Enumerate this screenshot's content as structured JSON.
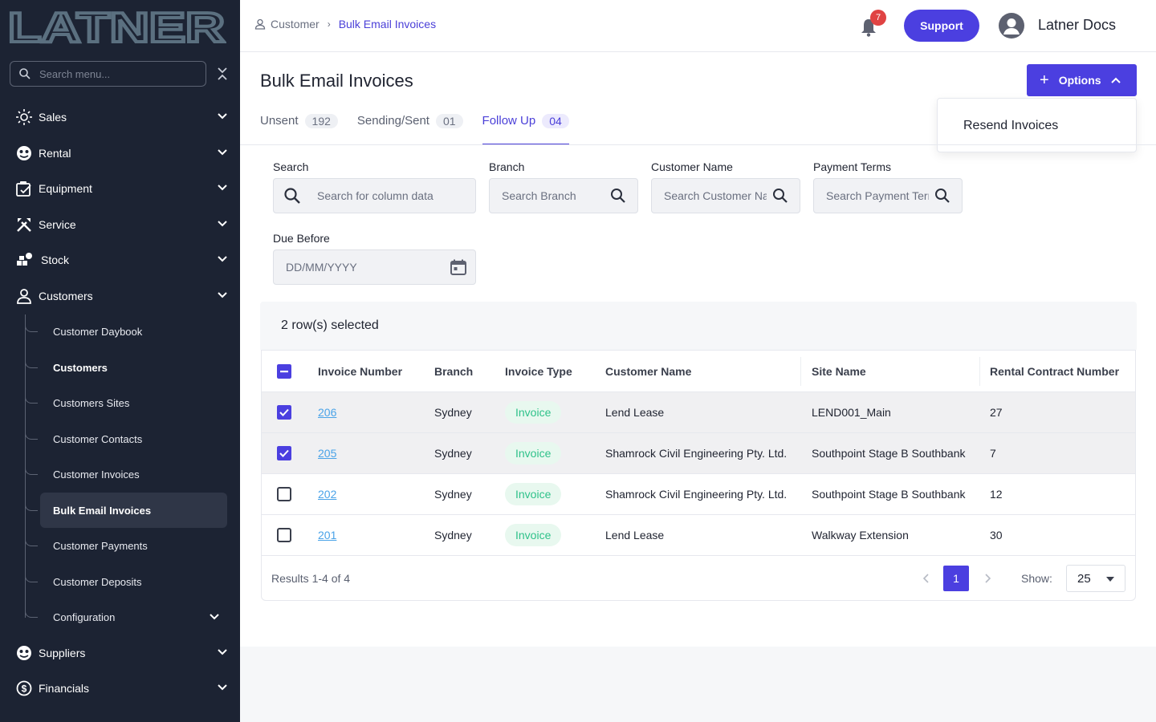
{
  "sidebar": {
    "logo_text": "LATNER",
    "search_placeholder": "Search menu...",
    "items": [
      {
        "label": "Sales",
        "icon": "sales-icon"
      },
      {
        "label": "Rental",
        "icon": "rental-icon"
      },
      {
        "label": "Equipment",
        "icon": "equipment-icon"
      },
      {
        "label": "Service",
        "icon": "service-icon"
      },
      {
        "label": "Stock",
        "icon": "stock-icon"
      },
      {
        "label": "Customers",
        "icon": "customers-icon"
      },
      {
        "label": "Suppliers",
        "icon": "suppliers-icon"
      },
      {
        "label": "Financials",
        "icon": "financials-icon"
      }
    ],
    "customers_sub": [
      {
        "label": "Customer Daybook"
      },
      {
        "label": "Customers"
      },
      {
        "label": "Customers Sites"
      },
      {
        "label": "Customer Contacts"
      },
      {
        "label": "Customer Invoices"
      },
      {
        "label": "Bulk Email Invoices"
      },
      {
        "label": "Customer Payments"
      },
      {
        "label": "Customer Deposits"
      },
      {
        "label": "Configuration"
      }
    ]
  },
  "header": {
    "breadcrumb_root": "Customer",
    "breadcrumb_current": "Bulk Email Invoices",
    "notification_count": "7",
    "support_label": "Support",
    "user_name": "Latner Docs"
  },
  "page": {
    "title": "Bulk Email Invoices",
    "options_label": "Options",
    "dropdown_item": "Resend Invoices",
    "tabs": [
      {
        "label": "Unsent",
        "count": "192"
      },
      {
        "label": "Sending/Sent",
        "count": "01"
      },
      {
        "label": "Follow Up",
        "count": "04"
      }
    ]
  },
  "filters": {
    "search_label": "Search",
    "search_placeholder": "Search for column data",
    "branch_label": "Branch",
    "branch_placeholder": "Search Branch",
    "customer_label": "Customer Name",
    "customer_placeholder": "Search Customer Name",
    "terms_label": "Payment Terms",
    "terms_placeholder": "Search Payment Terms",
    "due_label": "Due Before",
    "due_placeholder": "DD/MM/YYYY"
  },
  "table": {
    "selected_text": "2 row(s) selected",
    "columns": {
      "invoice_number": "Invoice Number",
      "branch": "Branch",
      "invoice_type": "Invoice Type",
      "customer_name": "Customer Name",
      "site_name": "Site Name",
      "contract": "Rental Contract Number"
    },
    "rows": [
      {
        "invoice": "206",
        "branch": "Sydney",
        "type": "Invoice",
        "customer": "Lend Lease",
        "site": "LEND001_Main",
        "contract": "27",
        "selected": true
      },
      {
        "invoice": "205",
        "branch": "Sydney",
        "type": "Invoice",
        "customer": "Shamrock Civil Engineering Pty. Ltd.",
        "site": "Southpoint Stage B Southbank",
        "contract": "7",
        "selected": true
      },
      {
        "invoice": "202",
        "branch": "Sydney",
        "type": "Invoice",
        "customer": "Shamrock Civil Engineering Pty. Ltd.",
        "site": "Southpoint Stage B Southbank",
        "contract": "12",
        "selected": false
      },
      {
        "invoice": "201",
        "branch": "Sydney",
        "type": "Invoice",
        "customer": "Lend Lease",
        "site": "Walkway Extension",
        "contract": "30",
        "selected": false
      }
    ],
    "results_text": "Results 1-4 of 4",
    "current_page": "1",
    "show_label": "Show:",
    "page_size": "25"
  },
  "colors": {
    "accent": "#4b3fe0",
    "sidebar_bg": "#1c2333",
    "link": "#4aa3e8",
    "pill_text": "#2fc28a",
    "badge": "#e04343"
  }
}
